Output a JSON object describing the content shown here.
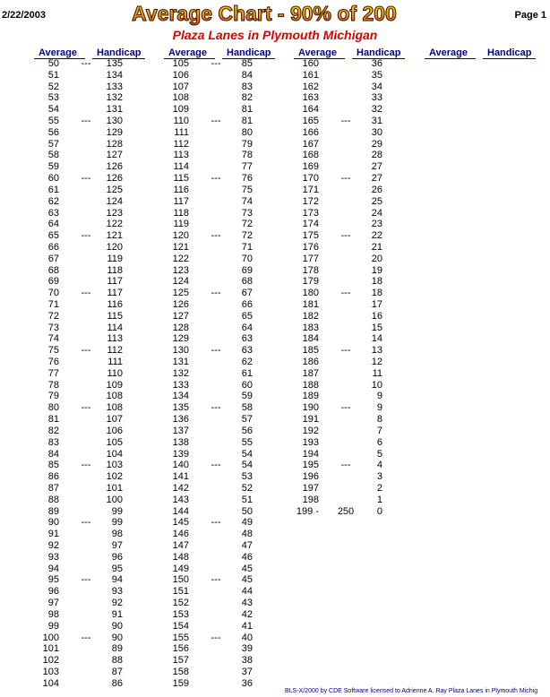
{
  "header": {
    "date": "2/22/2003",
    "title": "Average Chart - 90% of 200",
    "page": "Page 1",
    "subtitle": "Plaza Lanes in Plymouth Michigan"
  },
  "columns": [
    {
      "headers": [
        "Average",
        "Handicap"
      ],
      "rows": [
        [
          50,
          "---",
          135
        ],
        [
          51,
          134
        ],
        [
          52,
          133
        ],
        [
          53,
          132
        ],
        [
          54,
          131
        ],
        [
          55,
          "---",
          130
        ],
        [
          56,
          129
        ],
        [
          57,
          128
        ],
        [
          58,
          127
        ],
        [
          59,
          126
        ],
        [
          60,
          "---",
          126
        ],
        [
          61,
          125
        ],
        [
          62,
          124
        ],
        [
          63,
          123
        ],
        [
          64,
          122
        ],
        [
          65,
          "---",
          121
        ],
        [
          66,
          120
        ],
        [
          67,
          119
        ],
        [
          68,
          118
        ],
        [
          69,
          117
        ],
        [
          70,
          "---",
          117
        ],
        [
          71,
          116
        ],
        [
          72,
          115
        ],
        [
          73,
          114
        ],
        [
          74,
          113
        ],
        [
          75,
          "---",
          112
        ],
        [
          76,
          111
        ],
        [
          77,
          110
        ],
        [
          78,
          109
        ],
        [
          79,
          108
        ],
        [
          80,
          "---",
          108
        ],
        [
          81,
          107
        ],
        [
          82,
          106
        ],
        [
          83,
          105
        ],
        [
          84,
          104
        ],
        [
          85,
          "---",
          103
        ],
        [
          86,
          102
        ],
        [
          87,
          101
        ],
        [
          88,
          100
        ],
        [
          89,
          99
        ],
        [
          90,
          "---",
          99
        ],
        [
          91,
          98
        ],
        [
          92,
          97
        ],
        [
          93,
          96
        ],
        [
          94,
          95
        ],
        [
          95,
          "---",
          94
        ],
        [
          96,
          93
        ],
        [
          97,
          92
        ],
        [
          98,
          91
        ],
        [
          99,
          90
        ],
        [
          100,
          "---",
          90
        ],
        [
          101,
          89
        ],
        [
          102,
          88
        ],
        [
          103,
          87
        ],
        [
          104,
          86
        ]
      ]
    },
    {
      "headers": [
        "Average",
        "Handicap"
      ],
      "rows": [
        [
          105,
          "---",
          85
        ],
        [
          106,
          84
        ],
        [
          107,
          83
        ],
        [
          108,
          82
        ],
        [
          109,
          81
        ],
        [
          110,
          "---",
          81
        ],
        [
          111,
          80
        ],
        [
          112,
          79
        ],
        [
          113,
          78
        ],
        [
          114,
          77
        ],
        [
          115,
          "---",
          76
        ],
        [
          116,
          75
        ],
        [
          117,
          74
        ],
        [
          118,
          73
        ],
        [
          119,
          72
        ],
        [
          120,
          "---",
          72
        ],
        [
          121,
          71
        ],
        [
          122,
          70
        ],
        [
          123,
          69
        ],
        [
          124,
          68
        ],
        [
          125,
          "---",
          67
        ],
        [
          126,
          66
        ],
        [
          127,
          65
        ],
        [
          128,
          64
        ],
        [
          129,
          63
        ],
        [
          130,
          "---",
          63
        ],
        [
          131,
          62
        ],
        [
          132,
          61
        ],
        [
          133,
          60
        ],
        [
          134,
          59
        ],
        [
          135,
          "---",
          58
        ],
        [
          136,
          57
        ],
        [
          137,
          56
        ],
        [
          138,
          55
        ],
        [
          139,
          54
        ],
        [
          140,
          "---",
          54
        ],
        [
          141,
          53
        ],
        [
          142,
          52
        ],
        [
          143,
          51
        ],
        [
          144,
          50
        ],
        [
          145,
          "---",
          49
        ],
        [
          146,
          48
        ],
        [
          147,
          47
        ],
        [
          148,
          46
        ],
        [
          149,
          45
        ],
        [
          150,
          "---",
          45
        ],
        [
          151,
          44
        ],
        [
          152,
          43
        ],
        [
          153,
          42
        ],
        [
          154,
          41
        ],
        [
          155,
          "---",
          40
        ],
        [
          156,
          39
        ],
        [
          157,
          38
        ],
        [
          158,
          37
        ],
        [
          159,
          36
        ]
      ]
    },
    {
      "headers": [
        "Average",
        "Handicap"
      ],
      "rows": [
        [
          160,
          36
        ],
        [
          161,
          35
        ],
        [
          162,
          34
        ],
        [
          163,
          33
        ],
        [
          164,
          32
        ],
        [
          165,
          "---",
          31
        ],
        [
          166,
          30
        ],
        [
          167,
          29
        ],
        [
          168,
          28
        ],
        [
          169,
          27
        ],
        [
          170,
          "---",
          27
        ],
        [
          171,
          26
        ],
        [
          172,
          25
        ],
        [
          173,
          24
        ],
        [
          174,
          23
        ],
        [
          175,
          "---",
          22
        ],
        [
          176,
          21
        ],
        [
          177,
          20
        ],
        [
          178,
          19
        ],
        [
          179,
          18
        ],
        [
          180,
          "---",
          18
        ],
        [
          181,
          17
        ],
        [
          182,
          16
        ],
        [
          183,
          15
        ],
        [
          184,
          14
        ],
        [
          185,
          "---",
          13
        ],
        [
          186,
          12
        ],
        [
          187,
          11
        ],
        [
          188,
          10
        ],
        [
          189,
          9
        ],
        [
          190,
          "---",
          9
        ],
        [
          191,
          8
        ],
        [
          192,
          7
        ],
        [
          193,
          6
        ],
        [
          194,
          5
        ],
        [
          195,
          "---",
          4
        ],
        [
          196,
          3
        ],
        [
          197,
          2
        ],
        [
          198,
          1
        ],
        [
          "199 -",
          250,
          0
        ]
      ]
    },
    {
      "headers": [
        "Average",
        "Handicap"
      ],
      "rows": []
    }
  ],
  "footer": "BLS-X/2000 by CDE Software licensed to Adrienne A. Ray  Plaza Lanes in Plymouth Michig"
}
